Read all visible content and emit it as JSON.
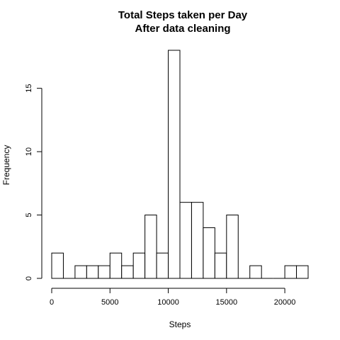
{
  "chart_data": {
    "type": "bar",
    "title": "Total Steps taken per Day",
    "subtitle": "After data cleaning",
    "xlabel": "Steps",
    "ylabel": "Frequency",
    "bin_width": 1000,
    "bins_start": [
      0,
      1000,
      2000,
      3000,
      4000,
      5000,
      6000,
      7000,
      8000,
      9000,
      10000,
      11000,
      12000,
      13000,
      14000,
      15000,
      16000,
      17000,
      18000,
      19000,
      20000,
      21000
    ],
    "values": [
      2,
      0,
      1,
      1,
      1,
      2,
      1,
      2,
      5,
      2,
      18,
      6,
      6,
      4,
      2,
      5,
      0,
      1,
      0,
      0,
      1,
      1
    ],
    "xlim": [
      0,
      22000
    ],
    "ylim": [
      0,
      18
    ],
    "x_ticks": [
      0,
      5000,
      10000,
      15000,
      20000
    ],
    "y_ticks": [
      0,
      5,
      10,
      15
    ],
    "grid": false,
    "bar_fill": "#ffffff",
    "bar_stroke": "#000000"
  }
}
